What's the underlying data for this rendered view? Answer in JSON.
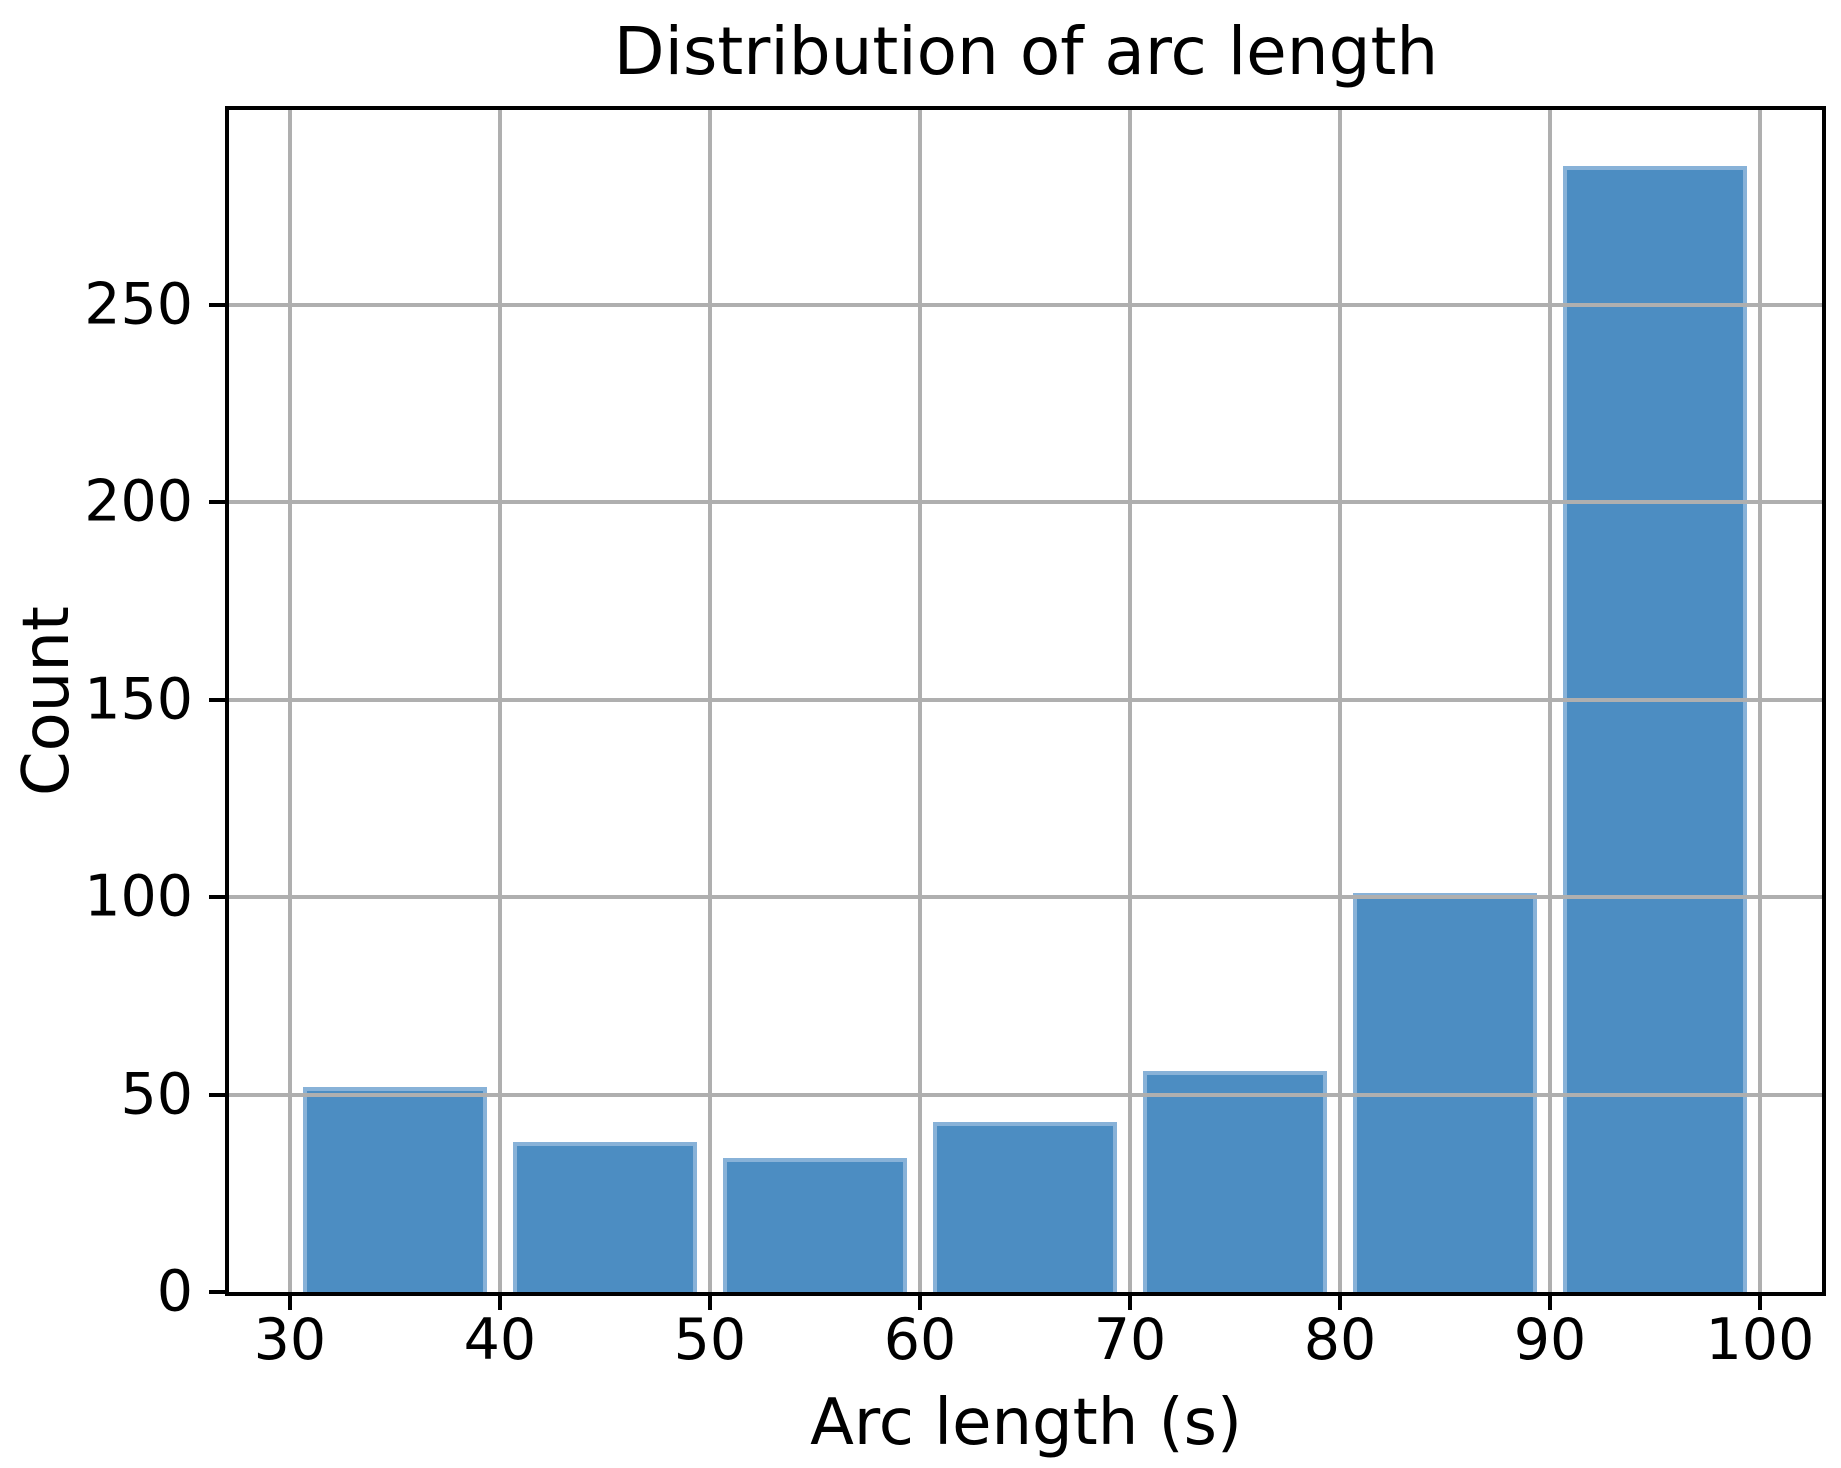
{
  "chart_data": {
    "type": "bar",
    "subtype": "histogram",
    "title": "Distribution of arc length",
    "xlabel": "Arc length (s)",
    "ylabel": "Count",
    "bin_edges": [
      30,
      40,
      50,
      60,
      70,
      80,
      90,
      100
    ],
    "counts": [
      52,
      38,
      34,
      43,
      56,
      101,
      285
    ],
    "bar_shrink": 0.88,
    "xticks": [
      30,
      40,
      50,
      60,
      70,
      80,
      90,
      100
    ],
    "yticks": [
      0,
      50,
      100,
      150,
      200,
      250
    ],
    "xlim": [
      27.1,
      102.95
    ],
    "ylim": [
      0,
      299.25
    ],
    "grid": true,
    "grid_over_bars": true,
    "legend": false,
    "colors": {
      "bar_fill": "#4C8DC2",
      "bar_edge": "#88B2D8",
      "grid": "#AFAFAF",
      "spine": "#000000",
      "text": "#000000",
      "background": "#FFFFFF"
    }
  }
}
